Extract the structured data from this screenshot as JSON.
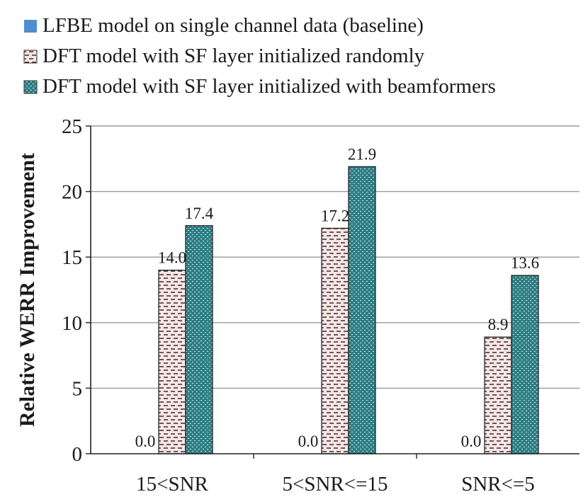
{
  "chart_data": {
    "type": "bar",
    "title": "",
    "xlabel": "",
    "ylabel": "Relative WERR Improvement",
    "ylim": [
      0,
      25
    ],
    "yticks": [
      0,
      5,
      10,
      15,
      20,
      25
    ],
    "grid": true,
    "legend_position": "top",
    "categories": [
      "15<SNR",
      "5<SNR<=15",
      "SNR<=5"
    ],
    "series": [
      {
        "name": "LFBE model on single channel data (baseline)",
        "values": [
          0.0,
          0.0,
          0.0
        ],
        "labels": [
          "0.0",
          "0.0",
          "0.0"
        ],
        "color": "#4f8fcf",
        "pattern": "solid"
      },
      {
        "name": "DFT model with SF layer initialized randomly",
        "values": [
          14.0,
          17.2,
          8.9
        ],
        "labels": [
          "14.0",
          "17.2",
          "8.9"
        ],
        "color": "#fbe4e4",
        "pattern": "dashes"
      },
      {
        "name": "DFT model with SF layer initialized with beamformers",
        "values": [
          17.4,
          21.9,
          13.6
        ],
        "labels": [
          "17.4",
          "21.9",
          "13.6"
        ],
        "color": "#2e7f84",
        "pattern": "dots"
      }
    ]
  }
}
